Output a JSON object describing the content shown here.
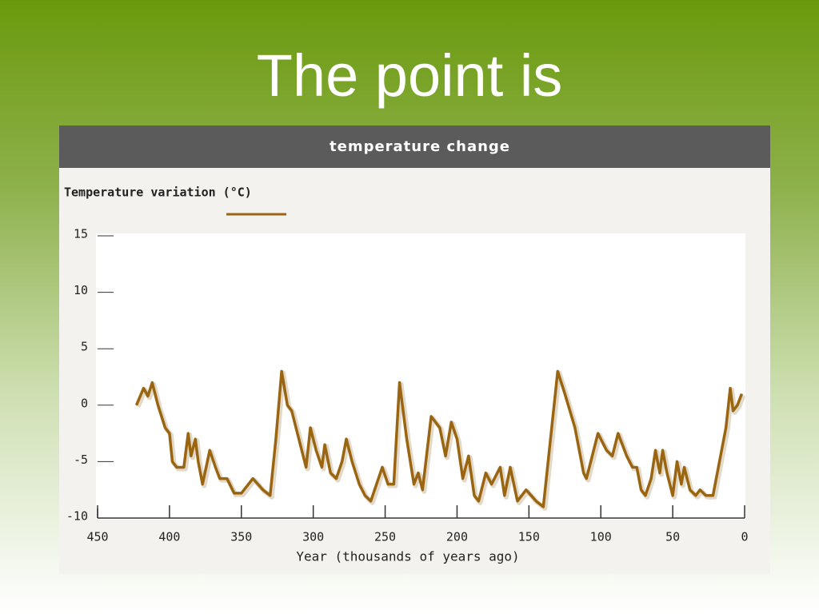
{
  "title": "The point is",
  "chart_data": {
    "type": "line",
    "title": "temperature change",
    "x": [
      423,
      418,
      415,
      412,
      408,
      403,
      400,
      398,
      395,
      390,
      387,
      385,
      382,
      380,
      377,
      372,
      368,
      365,
      360,
      355,
      350,
      342,
      335,
      330,
      326,
      322,
      318,
      315,
      310,
      305,
      302,
      298,
      294,
      292,
      288,
      284,
      280,
      277,
      273,
      268,
      264,
      260,
      252,
      248,
      244,
      240,
      235,
      230,
      227,
      224,
      218,
      212,
      208,
      204,
      200,
      196,
      192,
      188,
      185,
      180,
      176,
      170,
      167,
      163,
      158,
      152,
      145,
      140,
      130,
      125,
      118,
      112,
      110,
      102,
      96,
      92,
      88,
      82,
      78,
      75,
      72,
      69,
      65,
      62,
      59,
      57,
      54,
      50,
      47,
      44,
      42,
      38,
      34,
      31,
      27,
      22,
      13,
      10,
      8,
      5,
      2
    ],
    "series": [
      {
        "name": "Temperature variation (°C)",
        "color": "#9a6510",
        "values": [
          0,
          1.5,
          0.8,
          2,
          0,
          -2,
          -2.5,
          -5,
          -5.5,
          -5.5,
          -2.5,
          -4.5,
          -3,
          -5,
          -7,
          -4,
          -5.5,
          -6.5,
          -6.5,
          -7.8,
          -7.8,
          -6.5,
          -7.5,
          -8,
          -3,
          3,
          0,
          -0.5,
          -3,
          -5.5,
          -2,
          -4,
          -5.5,
          -3.5,
          -6,
          -6.5,
          -5,
          -3,
          -5,
          -7,
          -8,
          -8.5,
          -5.5,
          -7,
          -7,
          2,
          -3,
          -7,
          -6,
          -7.5,
          -1,
          -2,
          -4.5,
          -1.5,
          -3,
          -6.5,
          -4.5,
          -8,
          -8.5,
          -6,
          -7,
          -5.5,
          -8,
          -5.5,
          -8.5,
          -7.5,
          -8.5,
          -9,
          3,
          1,
          -2,
          -6,
          -6.5,
          -2.5,
          -4,
          -4.5,
          -2.5,
          -4.5,
          -5.5,
          -5.5,
          -7.5,
          -8,
          -6.5,
          -4,
          -6,
          -4,
          -6,
          -8,
          -5,
          -7,
          -5.5,
          -7.5,
          -8,
          -7.5,
          -8,
          -8,
          -2,
          1.5,
          -0.5,
          0,
          1
        ]
      }
    ],
    "xlabel": "Year (thousands of years ago)",
    "xlim": [
      450,
      0
    ],
    "xticks": [
      450,
      400,
      350,
      300,
      250,
      200,
      150,
      100,
      50,
      0
    ],
    "ylim": [
      -10,
      15
    ],
    "yticks": [
      15,
      10,
      5,
      0,
      -5,
      -10
    ]
  }
}
